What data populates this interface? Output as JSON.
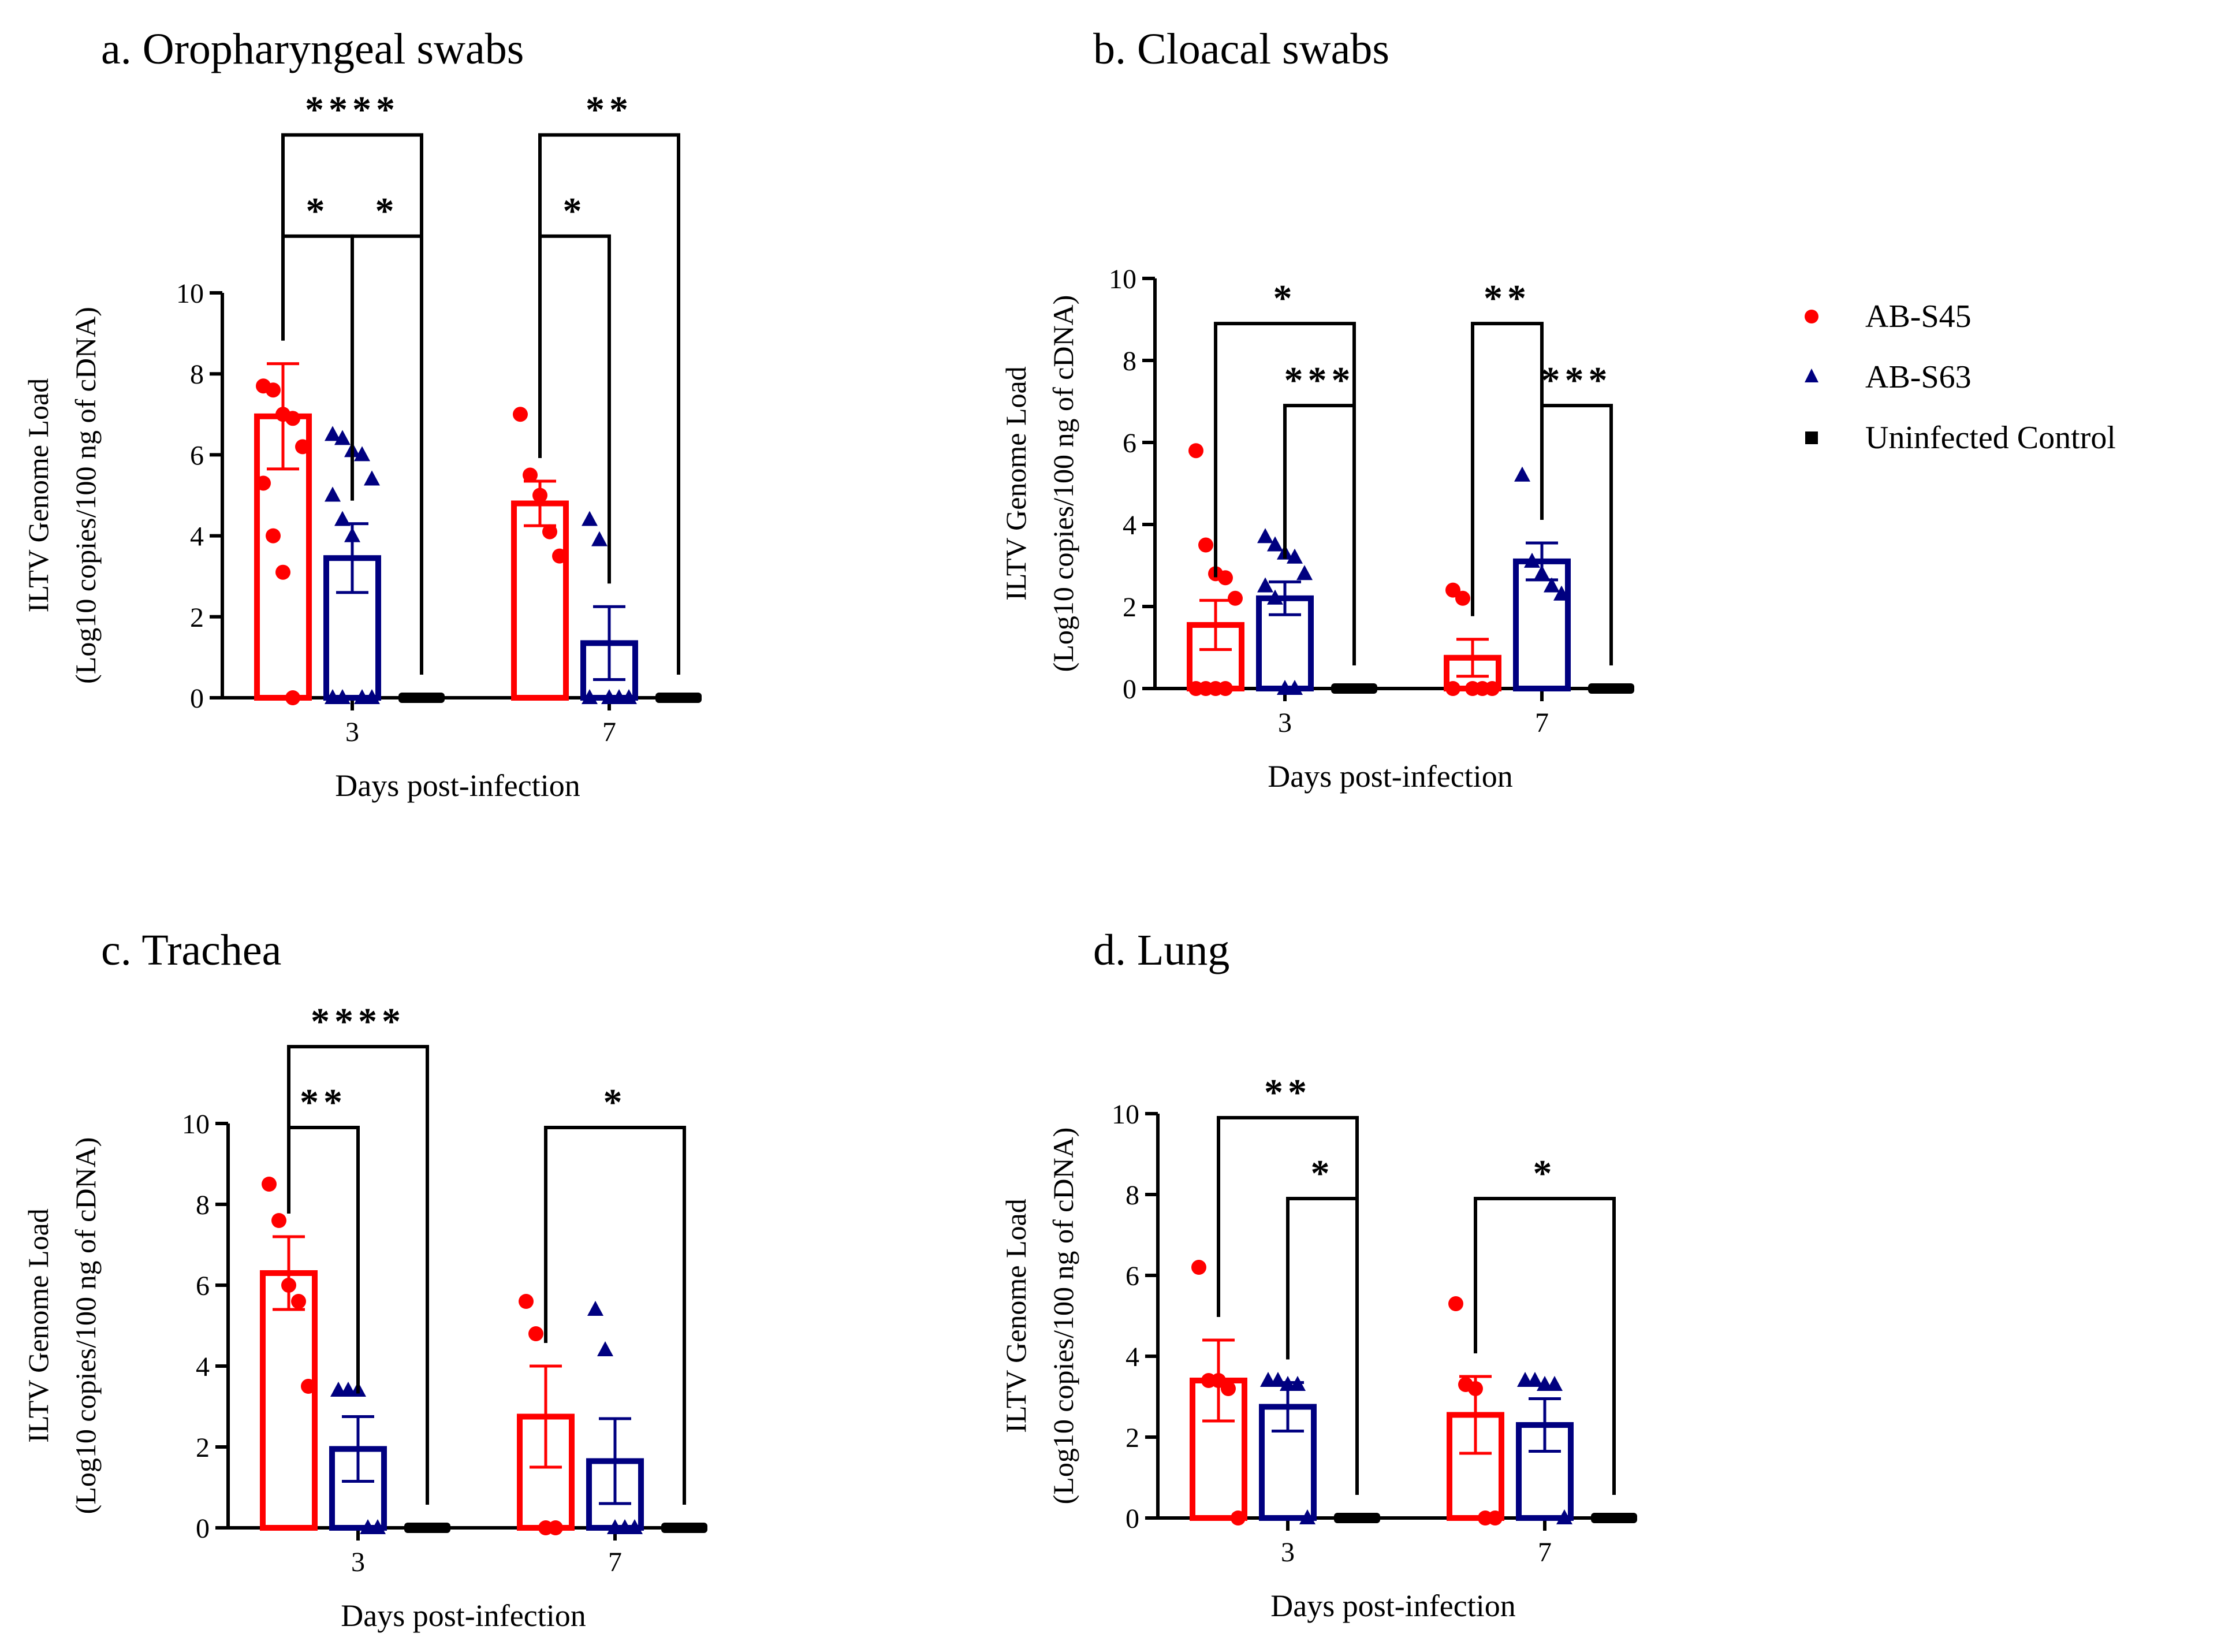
{
  "legend": {
    "items": [
      {
        "label": "AB-S45",
        "color": "#ff0000",
        "marker": "circle"
      },
      {
        "label": "AB-S63",
        "color": "#000080",
        "marker": "triangle"
      },
      {
        "label": "Uninfected Control",
        "color": "#000000",
        "marker": "square"
      }
    ]
  },
  "chart_data": [
    {
      "title": "a. Oropharyngeal swabs",
      "type": "bar",
      "ylabel_line1": "ILTV Genome Load",
      "ylabel_line2": "(Log10 copies/100 ng of cDNA)",
      "xlabel": "Days post-infection",
      "ylim": [
        0,
        10
      ],
      "yticks": [
        "0",
        "2",
        "4",
        "6",
        "8",
        "10"
      ],
      "categories": [
        "3",
        "7"
      ],
      "series": [
        {
          "name": "AB-S45",
          "means": [
            6.95,
            4.8
          ],
          "sem": [
            1.3,
            0.55
          ],
          "points": [
            [
              7.7,
              7.6,
              7.0,
              6.9,
              6.2,
              5.3,
              4.0,
              3.1,
              0
            ],
            [
              7.0,
              5.5,
              5.0,
              4.1,
              3.5
            ]
          ]
        },
        {
          "name": "AB-S63",
          "means": [
            3.45,
            1.35
          ],
          "sem": [
            0.85,
            0.9
          ],
          "points": [
            [
              6.5,
              6.4,
              6.1,
              6.0,
              5.4,
              5.0,
              4.4,
              4.0,
              0,
              0,
              0,
              0
            ],
            [
              4.4,
              3.9,
              0,
              0,
              0,
              0
            ]
          ]
        },
        {
          "name": "Uninfected Control",
          "means": [
            0,
            0
          ],
          "sem": [
            0,
            0
          ],
          "points": [
            [
              0,
              0,
              0,
              0,
              0
            ],
            [
              0,
              0,
              0,
              0,
              0
            ]
          ]
        }
      ],
      "significance": [
        {
          "label": "****",
          "from_group": 0,
          "from_series": 0,
          "to_group": 0,
          "to_series": 2,
          "y": 13.9
        },
        {
          "label": "*",
          "from_group": 0,
          "from_series": 0,
          "to_group": 0,
          "to_series": 1,
          "y": 11.4
        },
        {
          "label": "*",
          "from_group": 0,
          "from_series": 1,
          "to_group": 0,
          "to_series": 2,
          "y": 11.4
        },
        {
          "label": "**",
          "from_group": 1,
          "from_series": 0,
          "to_group": 1,
          "to_series": 2,
          "y": 13.9
        },
        {
          "label": "*",
          "from_group": 1,
          "from_series": 0,
          "to_group": 1,
          "to_series": 1,
          "y": 11.4
        }
      ]
    },
    {
      "title": "b. Cloacal swabs",
      "type": "bar",
      "ylabel_line1": "ILTV Genome Load",
      "ylabel_line2": "(Log10 copies/100 ng of cDNA)",
      "xlabel": "Days post-infection",
      "ylim": [
        0,
        10
      ],
      "yticks": [
        "0",
        "2",
        "4",
        "6",
        "8",
        "10"
      ],
      "categories": [
        "3",
        "7"
      ],
      "series": [
        {
          "name": "AB-S45",
          "means": [
            1.55,
            0.75
          ],
          "sem": [
            0.6,
            0.45
          ],
          "points": [
            [
              5.8,
              3.5,
              2.8,
              2.7,
              2.2,
              0,
              0,
              0,
              0
            ],
            [
              2.4,
              2.2,
              0,
              0,
              0,
              0
            ]
          ]
        },
        {
          "name": "AB-S63",
          "means": [
            2.2,
            3.1
          ],
          "sem": [
            0.4,
            0.45
          ],
          "points": [
            [
              3.7,
              3.5,
              3.3,
              3.2,
              2.8,
              2.5,
              2.2,
              0,
              0
            ],
            [
              5.2,
              3.1,
              2.8,
              2.5,
              2.3
            ]
          ]
        },
        {
          "name": "Uninfected Control",
          "means": [
            0,
            0
          ],
          "sem": [
            0,
            0
          ],
          "points": [
            [
              0,
              0,
              0,
              0,
              0
            ],
            [
              0,
              0,
              0,
              0,
              0
            ]
          ]
        }
      ],
      "significance": [
        {
          "label": "*",
          "from_group": 0,
          "from_series": 0,
          "to_group": 0,
          "to_series": 2,
          "y": 8.9
        },
        {
          "label": "***",
          "from_group": 0,
          "from_series": 1,
          "to_group": 0,
          "to_series": 2,
          "y": 6.9
        },
        {
          "label": "**",
          "from_group": 1,
          "from_series": 0,
          "to_group": 1,
          "to_series": 1,
          "y": 8.9
        },
        {
          "label": "***",
          "from_group": 1,
          "from_series": 1,
          "to_group": 1,
          "to_series": 2,
          "y": 6.9
        }
      ]
    },
    {
      "title": "c. Trachea",
      "type": "bar",
      "ylabel_line1": "ILTV Genome Load",
      "ylabel_line2": "(Log10 copies/100 ng of cDNA)",
      "xlabel": "Days post-infection",
      "ylim": [
        0,
        10
      ],
      "yticks": [
        "0",
        "2",
        "4",
        "6",
        "8",
        "10"
      ],
      "categories": [
        "3",
        "7"
      ],
      "series": [
        {
          "name": "AB-S45",
          "means": [
            6.3,
            2.75
          ],
          "sem": [
            0.9,
            1.25
          ],
          "points": [
            [
              8.5,
              7.6,
              6.0,
              5.6,
              3.5
            ],
            [
              5.6,
              4.8,
              0,
              0
            ]
          ]
        },
        {
          "name": "AB-S63",
          "means": [
            1.95,
            1.65
          ],
          "sem": [
            0.8,
            1.05
          ],
          "points": [
            [
              3.4,
              3.4,
              3.4,
              0,
              0
            ],
            [
              5.4,
              4.4,
              0,
              0,
              0
            ]
          ]
        },
        {
          "name": "Uninfected Control",
          "means": [
            0,
            0
          ],
          "sem": [
            0,
            0
          ],
          "points": [
            [
              0,
              0,
              0,
              0,
              0
            ],
            [
              0,
              0,
              0,
              0,
              0
            ]
          ]
        }
      ],
      "significance": [
        {
          "label": "****",
          "from_group": 0,
          "from_series": 0,
          "to_group": 0,
          "to_series": 2,
          "y": 11.9
        },
        {
          "label": "**",
          "from_group": 0,
          "from_series": 0,
          "to_group": 0,
          "to_series": 1,
          "y": 9.9
        },
        {
          "label": "*",
          "from_group": 1,
          "from_series": 0,
          "to_group": 1,
          "to_series": 2,
          "y": 9.9
        }
      ]
    },
    {
      "title": "d. Lung",
      "type": "bar",
      "ylabel_line1": "ILTV Genome Load",
      "ylabel_line2": "(Log10 copies/100 ng of cDNA)",
      "xlabel": "Days post-infection",
      "ylim": [
        0,
        10
      ],
      "yticks": [
        "0",
        "2",
        "4",
        "6",
        "8",
        "10"
      ],
      "categories": [
        "3",
        "7"
      ],
      "series": [
        {
          "name": "AB-S45",
          "means": [
            3.4,
            2.55
          ],
          "sem": [
            1.0,
            0.95
          ],
          "points": [
            [
              6.2,
              3.4,
              3.4,
              3.2,
              0
            ],
            [
              5.3,
              3.3,
              3.2,
              0,
              0
            ]
          ]
        },
        {
          "name": "AB-S63",
          "means": [
            2.75,
            2.3
          ],
          "sem": [
            0.6,
            0.65
          ],
          "points": [
            [
              3.4,
              3.4,
              3.3,
              3.3,
              0
            ],
            [
              3.4,
              3.4,
              3.3,
              3.3,
              0
            ]
          ]
        },
        {
          "name": "Uninfected Control",
          "means": [
            0,
            0
          ],
          "sem": [
            0,
            0
          ],
          "points": [
            [
              0,
              0,
              0,
              0,
              0
            ],
            [
              0,
              0,
              0,
              0,
              0
            ]
          ]
        }
      ],
      "significance": [
        {
          "label": "**",
          "from_group": 0,
          "from_series": 0,
          "to_group": 0,
          "to_series": 2,
          "y": 9.9
        },
        {
          "label": "*",
          "from_group": 0,
          "from_series": 1,
          "to_group": 0,
          "to_series": 2,
          "y": 7.9
        },
        {
          "label": "*",
          "from_group": 1,
          "from_series": 0,
          "to_group": 1,
          "to_series": 2,
          "y": 7.9
        }
      ]
    }
  ]
}
